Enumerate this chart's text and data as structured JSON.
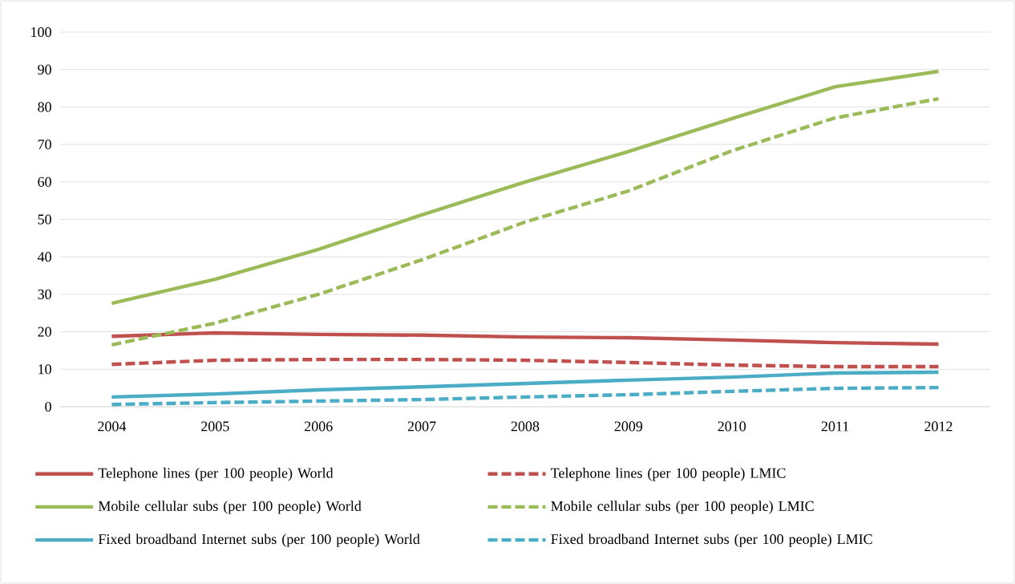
{
  "chart_data": {
    "type": "line",
    "categories": [
      "2004",
      "2005",
      "2006",
      "2007",
      "2008",
      "2009",
      "2010",
      "2011",
      "2012"
    ],
    "ylim": [
      0,
      100
    ],
    "yticks": [
      0,
      10,
      20,
      30,
      40,
      50,
      60,
      70,
      80,
      90,
      100
    ],
    "grid": "y",
    "legend": "bottom",
    "marker": "none",
    "series": [
      {
        "name": "Telephone lines (per 100 people) World",
        "color": "#c0504d",
        "line_style": "solid",
        "values": [
          18.8,
          19.7,
          19.3,
          19.1,
          18.6,
          18.4,
          17.8,
          17.1,
          16.7
        ]
      },
      {
        "name": "Telephone lines (per 100 people) LMIC",
        "color": "#c0504d",
        "line_style": "dashed",
        "values": [
          11.3,
          12.4,
          12.6,
          12.6,
          12.4,
          11.8,
          11.1,
          10.7,
          10.7
        ]
      },
      {
        "name": "Mobile cellular subs (per 100 people) World",
        "color": "#9bbb59",
        "line_style": "solid",
        "values": [
          27.6,
          34.0,
          42.0,
          51.2,
          60.0,
          68.1,
          76.9,
          85.4,
          89.5
        ]
      },
      {
        "name": "Mobile cellular subs (per 100 people) LMIC",
        "color": "#9bbb59",
        "line_style": "dashed",
        "values": [
          16.5,
          22.3,
          30.0,
          39.2,
          49.3,
          57.6,
          68.3,
          77.1,
          82.2
        ]
      },
      {
        "name": "Fixed broadband Internet subs (per 100 people) World",
        "color": "#4bacc6",
        "line_style": "solid",
        "values": [
          2.6,
          3.4,
          4.5,
          5.3,
          6.2,
          7.1,
          7.9,
          9.0,
          9.2
        ]
      },
      {
        "name": "Fixed broadband Internet subs (per 100 people) LMIC",
        "color": "#4bacc6",
        "line_style": "dashed",
        "values": [
          0.6,
          1.1,
          1.5,
          1.9,
          2.6,
          3.2,
          4.1,
          4.9,
          5.1
        ]
      }
    ]
  }
}
